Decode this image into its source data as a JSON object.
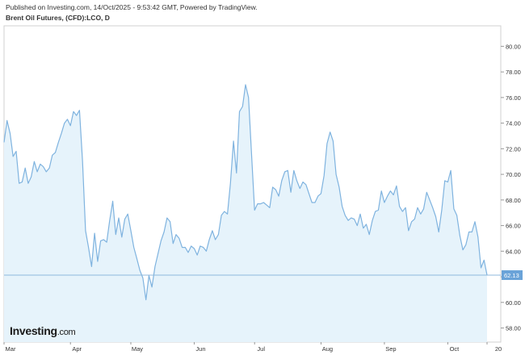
{
  "header": {
    "published": "Published on Investing.com, 14/Oct/2025 - 9:53:42 GMT, Powered by TradingView.",
    "instrument": "Brent Oil Futures, (CFD):LCO, D"
  },
  "logo": {
    "brand": "Investing",
    "suffix": ".com"
  },
  "colors": {
    "line": "#7fb3df",
    "area": "#e6f3fb",
    "last_price_line": "#8fb8dc",
    "price_tag": "#6aa3d8",
    "grid": "#e4e4e4",
    "axis": "#d0d0d0"
  },
  "chart_data": {
    "type": "area",
    "title": "Brent Oil Futures, (CFD):LCO, D",
    "ylim": [
      57,
      82
    ],
    "y_ticks": [
      "58.00",
      "60.00",
      "62.00",
      "64.00",
      "66.00",
      "68.00",
      "70.00",
      "72.00",
      "74.00",
      "76.00",
      "78.00",
      "80.00"
    ],
    "x_ticks": [
      {
        "label": "Mar",
        "x": 0
      },
      {
        "label": "Apr",
        "x": 22
      },
      {
        "label": "May",
        "x": 42
      },
      {
        "label": "Jun",
        "x": 63
      },
      {
        "label": "Jul",
        "x": 83
      },
      {
        "label": "Aug",
        "x": 105
      },
      {
        "label": "Sep",
        "x": 126
      },
      {
        "label": "Oct",
        "x": 147
      },
      {
        "label": "20",
        "x": 160
      }
    ],
    "last_price": "62.13",
    "last_value": 62.13,
    "series": [
      {
        "points": [
          [
            0,
            72.5
          ],
          [
            1,
            74.2
          ],
          [
            2,
            73.2
          ],
          [
            3,
            71.4
          ],
          [
            4,
            71.8
          ],
          [
            5,
            69.3
          ],
          [
            6,
            69.4
          ],
          [
            7,
            70.5
          ],
          [
            8,
            69.3
          ],
          [
            9,
            69.8
          ],
          [
            10,
            71.0
          ],
          [
            11,
            70.2
          ],
          [
            12,
            70.8
          ],
          [
            13,
            70.6
          ],
          [
            14,
            70.2
          ],
          [
            15,
            70.5
          ],
          [
            16,
            71.5
          ],
          [
            17,
            71.7
          ],
          [
            18,
            72.5
          ],
          [
            19,
            73.2
          ],
          [
            20,
            74.0
          ],
          [
            21,
            74.3
          ],
          [
            22,
            73.8
          ],
          [
            23,
            74.9
          ],
          [
            24,
            74.6
          ],
          [
            25,
            75.0
          ],
          [
            26,
            71.0
          ],
          [
            27,
            65.6
          ],
          [
            28,
            64.3
          ],
          [
            29,
            62.8
          ],
          [
            30,
            65.4
          ],
          [
            31,
            63.2
          ],
          [
            32,
            64.8
          ],
          [
            33,
            64.9
          ],
          [
            34,
            64.7
          ],
          [
            35,
            66.4
          ],
          [
            36,
            67.9
          ],
          [
            37,
            65.3
          ],
          [
            38,
            66.6
          ],
          [
            39,
            65.1
          ],
          [
            40,
            66.5
          ],
          [
            41,
            66.9
          ],
          [
            42,
            65.6
          ],
          [
            43,
            64.3
          ],
          [
            44,
            63.4
          ],
          [
            45,
            62.5
          ],
          [
            46,
            61.9
          ],
          [
            47,
            60.2
          ],
          [
            48,
            62.1
          ],
          [
            49,
            61.2
          ],
          [
            50,
            62.8
          ],
          [
            51,
            63.8
          ],
          [
            52,
            64.8
          ],
          [
            53,
            65.5
          ],
          [
            54,
            66.6
          ],
          [
            55,
            66.3
          ],
          [
            56,
            64.6
          ],
          [
            57,
            65.3
          ],
          [
            58,
            65.0
          ],
          [
            59,
            64.3
          ],
          [
            60,
            64.3
          ],
          [
            61,
            63.9
          ],
          [
            62,
            64.4
          ],
          [
            63,
            64.2
          ],
          [
            64,
            63.7
          ],
          [
            65,
            64.4
          ],
          [
            66,
            64.3
          ],
          [
            67,
            64.0
          ],
          [
            68,
            64.9
          ],
          [
            69,
            65.6
          ],
          [
            70,
            64.9
          ],
          [
            71,
            65.3
          ],
          [
            72,
            66.8
          ],
          [
            73,
            67.1
          ],
          [
            74,
            66.9
          ],
          [
            75,
            69.3
          ],
          [
            76,
            72.6
          ],
          [
            77,
            70.1
          ],
          [
            78,
            74.9
          ],
          [
            79,
            75.3
          ],
          [
            80,
            77.0
          ],
          [
            81,
            76.0
          ],
          [
            82,
            71.5
          ],
          [
            83,
            67.2
          ],
          [
            84,
            67.7
          ],
          [
            85,
            67.7
          ],
          [
            86,
            67.8
          ],
          [
            87,
            67.6
          ],
          [
            88,
            67.4
          ],
          [
            89,
            69.0
          ],
          [
            90,
            68.8
          ],
          [
            91,
            68.3
          ],
          [
            92,
            69.5
          ],
          [
            93,
            70.2
          ],
          [
            94,
            70.3
          ],
          [
            95,
            68.6
          ],
          [
            96,
            70.3
          ],
          [
            97,
            69.5
          ],
          [
            98,
            68.9
          ],
          [
            99,
            69.4
          ],
          [
            100,
            69.2
          ],
          [
            101,
            68.5
          ],
          [
            102,
            67.8
          ],
          [
            103,
            67.8
          ],
          [
            104,
            68.3
          ],
          [
            105,
            68.5
          ],
          [
            106,
            69.9
          ],
          [
            107,
            72.4
          ],
          [
            108,
            73.3
          ],
          [
            109,
            72.6
          ],
          [
            110,
            70.0
          ],
          [
            111,
            69.0
          ],
          [
            112,
            67.5
          ],
          [
            113,
            66.8
          ],
          [
            114,
            66.4
          ],
          [
            115,
            66.6
          ],
          [
            116,
            66.5
          ],
          [
            117,
            66.0
          ],
          [
            118,
            66.9
          ],
          [
            119,
            65.8
          ],
          [
            120,
            66.1
          ],
          [
            121,
            65.3
          ],
          [
            122,
            66.4
          ],
          [
            123,
            67.1
          ],
          [
            124,
            67.2
          ],
          [
            125,
            68.7
          ],
          [
            126,
            67.8
          ],
          [
            127,
            68.3
          ],
          [
            128,
            68.7
          ],
          [
            129,
            68.4
          ],
          [
            130,
            69.1
          ],
          [
            131,
            67.5
          ],
          [
            132,
            67.1
          ],
          [
            133,
            67.4
          ],
          [
            134,
            65.6
          ],
          [
            135,
            66.3
          ],
          [
            136,
            66.5
          ],
          [
            137,
            67.4
          ],
          [
            138,
            66.9
          ],
          [
            139,
            67.3
          ],
          [
            140,
            68.6
          ],
          [
            141,
            68.0
          ],
          [
            142,
            67.4
          ],
          [
            143,
            66.7
          ],
          [
            144,
            65.5
          ],
          [
            145,
            67.2
          ],
          [
            146,
            69.5
          ],
          [
            147,
            69.4
          ],
          [
            148,
            70.3
          ],
          [
            149,
            67.3
          ],
          [
            150,
            66.8
          ],
          [
            151,
            65.2
          ],
          [
            152,
            64.1
          ],
          [
            153,
            64.5
          ],
          [
            154,
            65.5
          ],
          [
            155,
            65.5
          ],
          [
            156,
            66.3
          ],
          [
            157,
            65.1
          ],
          [
            158,
            62.7
          ],
          [
            159,
            63.3
          ],
          [
            160,
            62.13
          ]
        ]
      }
    ]
  }
}
